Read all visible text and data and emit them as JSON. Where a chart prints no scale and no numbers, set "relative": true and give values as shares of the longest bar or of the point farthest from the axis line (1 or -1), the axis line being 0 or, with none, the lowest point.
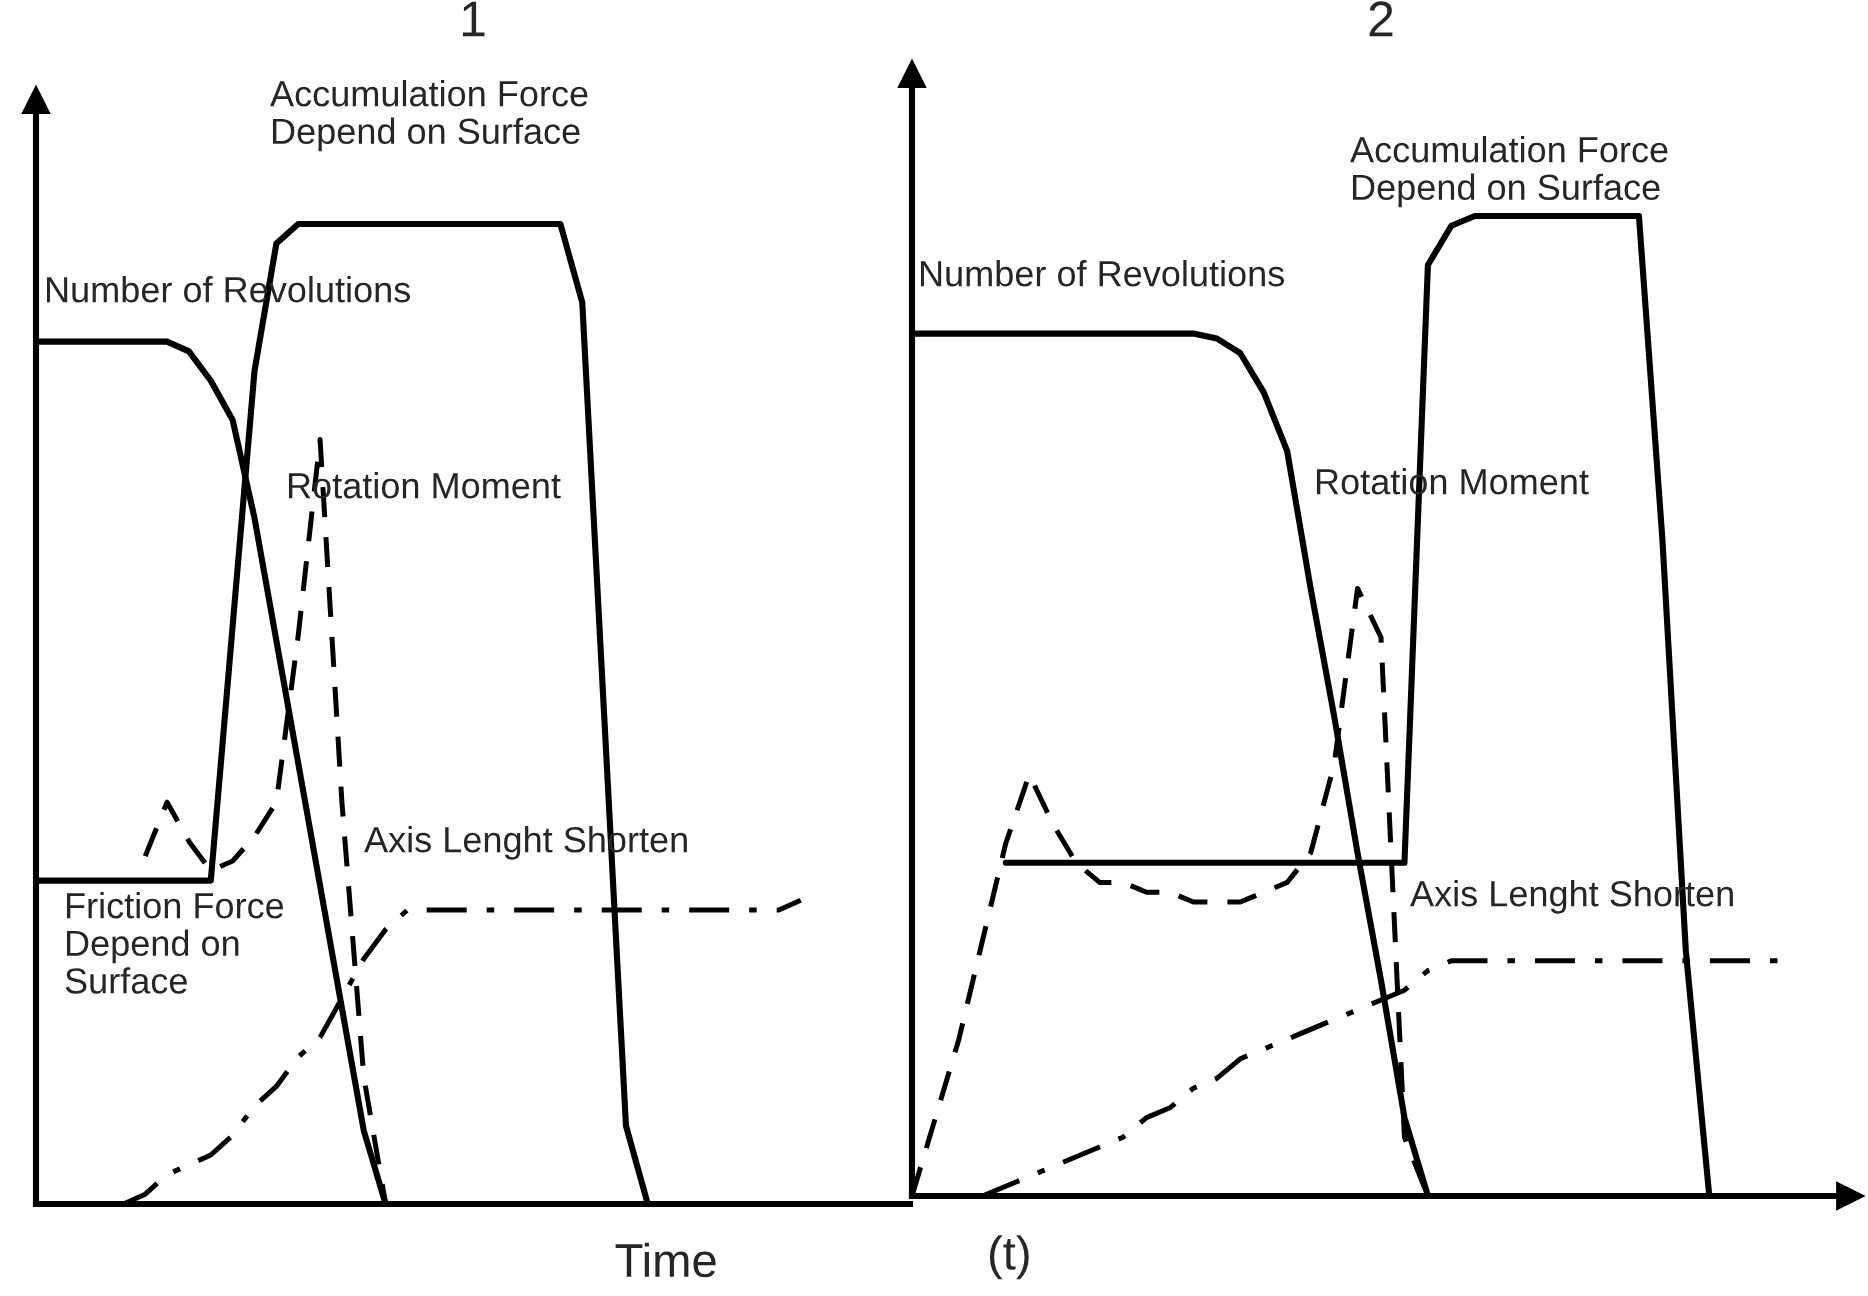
{
  "chart_data": [
    {
      "type": "line",
      "title": "1",
      "xlabel": "Time",
      "relative": true,
      "categories": [
        null,
        null,
        null,
        null,
        null,
        null,
        null,
        null,
        null,
        null,
        null,
        null,
        null,
        null,
        null,
        null,
        null,
        null,
        null,
        null,
        null,
        null,
        null,
        null,
        null,
        null,
        null,
        null,
        null,
        null,
        null,
        null,
        null,
        null,
        null,
        null,
        null,
        null,
        null,
        null,
        null
      ],
      "series": [
        {
          "color": "#000000",
          "line_style": "solid",
          "values": [
            0.88,
            0.88,
            0.88,
            0.88,
            0.88,
            0.88,
            0.88,
            0.87,
            0.84,
            0.8,
            0.7,
            0.575,
            0.45,
            0.325,
            0.2,
            0.075,
            0,
            null,
            null,
            null,
            null,
            null,
            null,
            null,
            null,
            null,
            null,
            null,
            null,
            null,
            null,
            null,
            null,
            null,
            null,
            null,
            null,
            null,
            null,
            null,
            null
          ]
        },
        {
          "color": "#000000",
          "line_style": "solid",
          "values": [
            0.33,
            0.33,
            0.33,
            0.33,
            0.33,
            0.33,
            0.33,
            0.33,
            0.33,
            0.59,
            0.85,
            0.98,
            1.0,
            1.0,
            1.0,
            1.0,
            1.0,
            1.0,
            1.0,
            1.0,
            1.0,
            1.0,
            1.0,
            1.0,
            1.0,
            0.92,
            0.5,
            0.08,
            0,
            null,
            null,
            null,
            null,
            null,
            null,
            null,
            null,
            null,
            null,
            null,
            null
          ]
        },
        {
          "color": "#000000",
          "line_style": "dashed",
          "values": [
            null,
            null,
            null,
            null,
            null,
            0.355,
            0.41,
            0.37,
            0.34,
            0.35,
            0.375,
            0.41,
            0.58,
            0.78,
            0.41,
            0.13,
            0,
            null,
            null,
            null,
            null,
            null,
            null,
            null,
            null,
            null,
            null,
            null,
            null,
            null,
            null,
            null,
            null,
            null,
            null,
            null,
            null,
            null,
            null,
            null,
            null
          ]
        },
        {
          "color": "#000000",
          "line_style": "dashdot",
          "values": [
            null,
            null,
            null,
            null,
            0,
            0.01,
            0.03,
            0.04,
            0.05,
            0.07,
            0.1,
            0.12,
            0.15,
            0.17,
            0.21,
            0.25,
            0.28,
            0.3,
            0.3,
            0.3,
            0.3,
            0.3,
            0.3,
            0.3,
            0.3,
            0.3,
            0.3,
            0.3,
            0.3,
            0.3,
            0.3,
            0.3,
            0.3,
            0.3,
            0.3,
            0.31,
            null,
            null,
            null,
            null,
            null
          ]
        }
      ],
      "annotations": [
        "Accumulation Force\nDepend on Surface",
        "Number of Revolutions",
        "Rotation Moment",
        "Axis Lenght Shorten",
        "Friction Force\nDepend on\nSurface"
      ]
    },
    {
      "type": "line",
      "title": "2",
      "xlabel": "(t)",
      "relative": true,
      "categories": [
        null,
        null,
        null,
        null,
        null,
        null,
        null,
        null,
        null,
        null,
        null,
        null,
        null,
        null,
        null,
        null,
        null,
        null,
        null,
        null,
        null,
        null,
        null,
        null,
        null,
        null,
        null,
        null,
        null,
        null,
        null,
        null,
        null,
        null,
        null,
        null,
        null,
        null,
        null,
        null,
        null
      ],
      "series": [
        {
          "color": "#000000",
          "line_style": "solid",
          "values": [
            0.88,
            0.88,
            0.88,
            0.88,
            0.88,
            0.88,
            0.88,
            0.88,
            0.88,
            0.88,
            0.88,
            0.88,
            0.88,
            0.875,
            0.86,
            0.82,
            0.76,
            0.62,
            0.49,
            0.35,
            0.22,
            0.08,
            0,
            null,
            null,
            null,
            null,
            null,
            null,
            null,
            null,
            null,
            null,
            null,
            null,
            null,
            null,
            null,
            null,
            null,
            null
          ]
        },
        {
          "color": "#000000",
          "line_style": "solid",
          "values": [
            null,
            null,
            null,
            null,
            0.34,
            0.34,
            0.34,
            0.34,
            0.34,
            0.34,
            0.34,
            0.34,
            0.34,
            0.34,
            0.34,
            0.34,
            0.34,
            0.34,
            0.34,
            0.34,
            0.34,
            0.34,
            0.95,
            0.99,
            1.0,
            1.0,
            1.0,
            1.0,
            1.0,
            1.0,
            1.0,
            1.0,
            0.67,
            0.25,
            0,
            null,
            null,
            null,
            null,
            null,
            null
          ]
        },
        {
          "color": "#000000",
          "line_style": "dashed",
          "values": [
            0,
            0.08,
            0.16,
            0.26,
            0.36,
            0.43,
            0.38,
            0.34,
            0.32,
            0.32,
            0.31,
            0.31,
            0.3,
            0.3,
            0.3,
            0.31,
            0.32,
            0.35,
            0.44,
            0.62,
            0.57,
            0.06,
            0,
            null,
            null,
            null,
            null,
            null,
            null,
            null,
            null,
            null,
            null,
            null,
            null,
            null,
            null,
            null,
            null,
            null,
            null
          ]
        },
        {
          "color": "#000000",
          "line_style": "dashdot",
          "values": [
            null,
            null,
            null,
            0,
            0.01,
            0.02,
            0.03,
            0.04,
            0.05,
            0.06,
            0.08,
            0.09,
            0.11,
            0.12,
            0.14,
            0.15,
            0.16,
            0.17,
            0.18,
            0.19,
            0.2,
            0.21,
            0.23,
            0.24,
            0.24,
            0.24,
            0.24,
            0.24,
            0.24,
            0.24,
            0.24,
            0.24,
            0.24,
            0.24,
            0.24,
            0.24,
            0.24,
            0.24,
            null,
            null,
            null
          ]
        }
      ],
      "annotations": [
        "Accumulation Force\nDepend on Surface",
        "Number of Revolutions",
        "Rotation Moment",
        "Axis Lenght Shorten"
      ]
    }
  ]
}
